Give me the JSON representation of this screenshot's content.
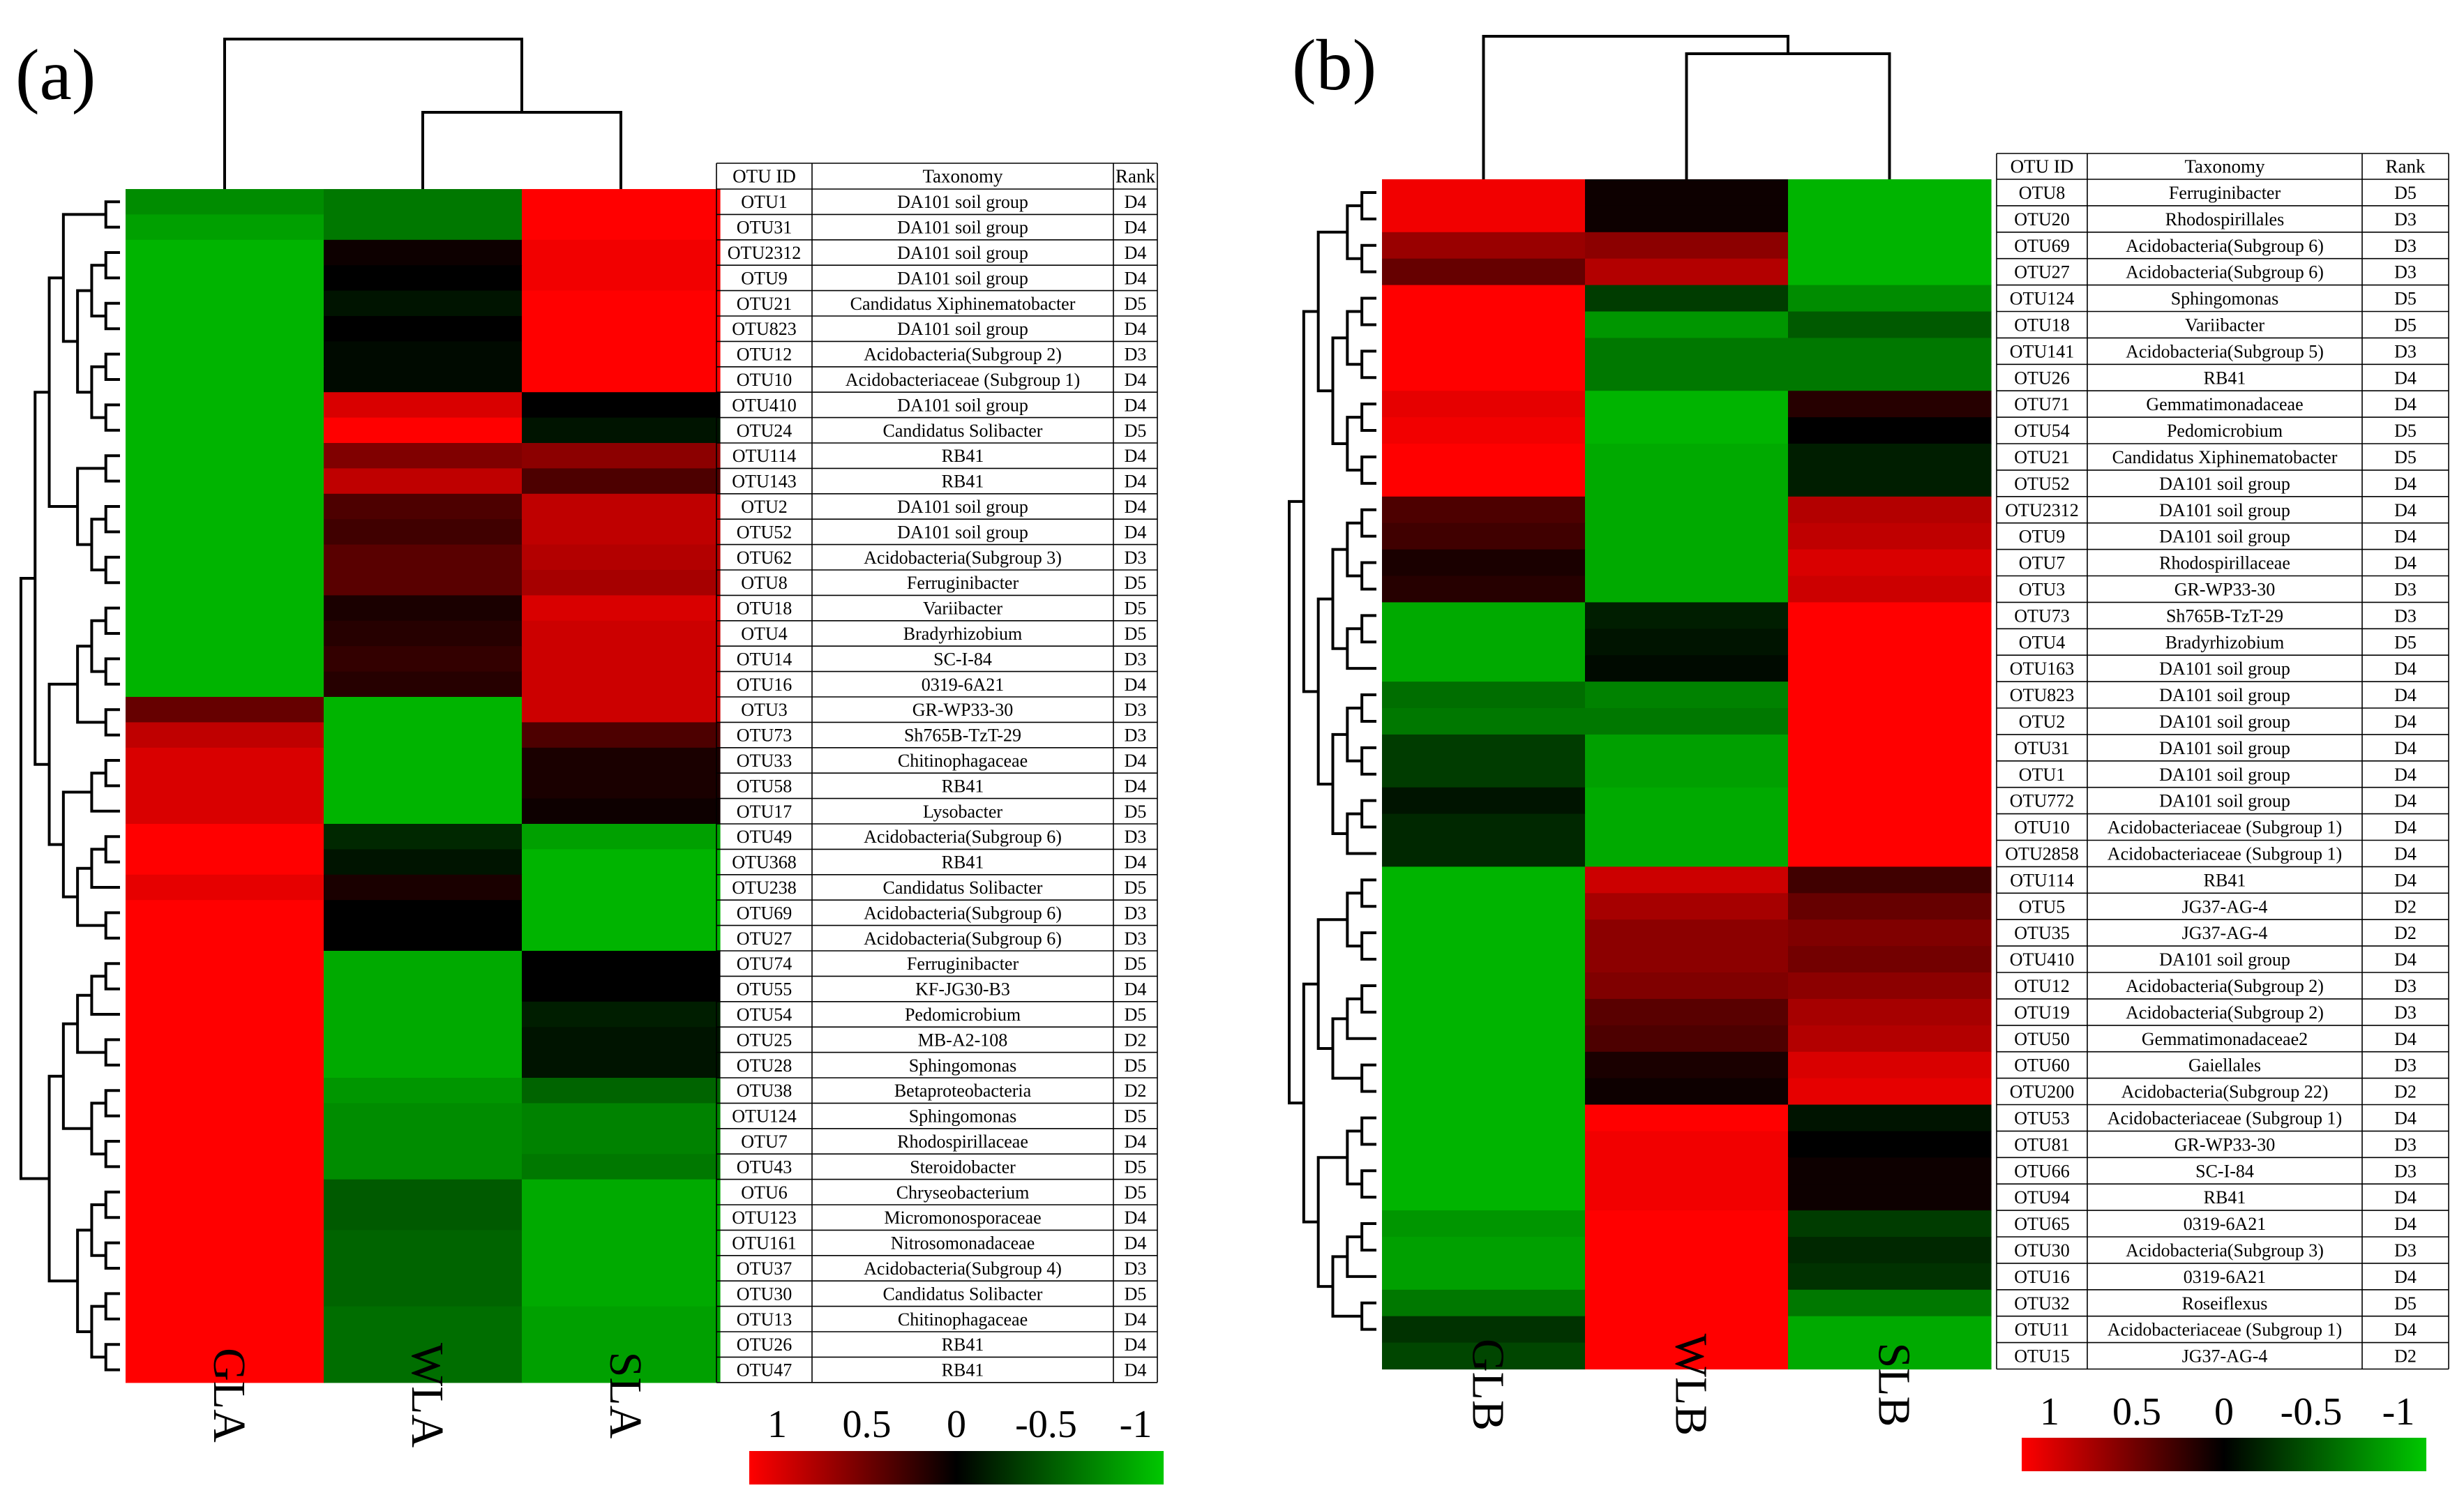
{
  "chart_data": [
    {
      "type": "heatmap",
      "panel_label": "(a)",
      "columns": [
        "GLA",
        "WLA",
        "SLA"
      ],
      "table_headers": [
        "OTU ID",
        "Taxonomy",
        "Rank"
      ],
      "colorbar": {
        "ticks": [
          "1",
          "0.5",
          "0",
          "-0.5",
          "-1"
        ],
        "range": [
          1,
          -1
        ],
        "colors": [
          "#ff0000",
          "#000000",
          "#00c800"
        ]
      },
      "rows": [
        {
          "id": "OTU1",
          "taxonomy": "DA101 soil group",
          "rank": "D4",
          "values": [
            -0.7,
            -0.6,
            1.0
          ]
        },
        {
          "id": "OTU31",
          "taxonomy": "DA101 soil group",
          "rank": "D4",
          "values": [
            -0.8,
            -0.6,
            1.0
          ]
        },
        {
          "id": "OTU2312",
          "taxonomy": "DA101 soil group",
          "rank": "D4",
          "values": [
            -0.9,
            0.05,
            0.95
          ]
        },
        {
          "id": "OTU9",
          "taxonomy": "DA101 soil group",
          "rank": "D4",
          "values": [
            -0.9,
            0.0,
            0.95
          ]
        },
        {
          "id": "OTU21",
          "taxonomy": "Candidatus Xiphinematobacter",
          "rank": "D5",
          "values": [
            -0.9,
            -0.1,
            1.0
          ]
        },
        {
          "id": "OTU823",
          "taxonomy": "DA101 soil group",
          "rank": "D4",
          "values": [
            -0.9,
            0.0,
            1.0
          ]
        },
        {
          "id": "OTU12",
          "taxonomy": "Acidobacteria(Subgroup 2)",
          "rank": "D3",
          "values": [
            -0.9,
            -0.05,
            1.0
          ]
        },
        {
          "id": "OTU10",
          "taxonomy": "Acidobacteriaceae (Subgroup 1)",
          "rank": "D4",
          "values": [
            -0.9,
            -0.05,
            1.0
          ]
        },
        {
          "id": "OTU410",
          "taxonomy": "DA101 soil group",
          "rank": "D4",
          "values": [
            -0.9,
            0.85,
            0.0
          ]
        },
        {
          "id": "OTU24",
          "taxonomy": "Candidatus Solibacter",
          "rank": "D5",
          "values": [
            -0.9,
            1.0,
            -0.1
          ]
        },
        {
          "id": "OTU114",
          "taxonomy": "RB41",
          "rank": "D4",
          "values": [
            -0.9,
            0.5,
            0.55
          ]
        },
        {
          "id": "OTU143",
          "taxonomy": "RB41",
          "rank": "D4",
          "values": [
            -0.9,
            0.75,
            0.3
          ]
        },
        {
          "id": "OTU2",
          "taxonomy": "DA101 soil group",
          "rank": "D4",
          "values": [
            -0.9,
            0.3,
            0.75
          ]
        },
        {
          "id": "OTU52",
          "taxonomy": "DA101 soil group",
          "rank": "D4",
          "values": [
            -0.9,
            0.25,
            0.75
          ]
        },
        {
          "id": "OTU62",
          "taxonomy": "Acidobacteria(Subgroup 3)",
          "rank": "D3",
          "values": [
            -0.9,
            0.35,
            0.7
          ]
        },
        {
          "id": "OTU8",
          "taxonomy": "Ferruginibacter",
          "rank": "D5",
          "values": [
            -0.9,
            0.35,
            0.65
          ]
        },
        {
          "id": "OTU18",
          "taxonomy": "Variibacter",
          "rank": "D5",
          "values": [
            -0.9,
            0.1,
            0.85
          ]
        },
        {
          "id": "OTU4",
          "taxonomy": "Bradyrhizobium",
          "rank": "D5",
          "values": [
            -0.9,
            0.15,
            0.8
          ]
        },
        {
          "id": "OTU14",
          "taxonomy": "SC-I-84",
          "rank": "D3",
          "values": [
            -0.9,
            0.2,
            0.8
          ]
        },
        {
          "id": "OTU16",
          "taxonomy": "0319-6A21",
          "rank": "D4",
          "values": [
            -0.9,
            0.15,
            0.8
          ]
        },
        {
          "id": "OTU3",
          "taxonomy": "GR-WP33-30",
          "rank": "D3",
          "values": [
            0.4,
            -0.9,
            0.8
          ]
        },
        {
          "id": "OTU73",
          "taxonomy": "Sh765B-TzT-29",
          "rank": "D3",
          "values": [
            0.75,
            -0.9,
            0.3
          ]
        },
        {
          "id": "OTU33",
          "taxonomy": "Chitinophagaceae",
          "rank": "D4",
          "values": [
            0.85,
            -0.9,
            0.1
          ]
        },
        {
          "id": "OTU58",
          "taxonomy": "RB41",
          "rank": "D4",
          "values": [
            0.85,
            -0.9,
            0.1
          ]
        },
        {
          "id": "OTU17",
          "taxonomy": "Lysobacter",
          "rank": "D5",
          "values": [
            0.85,
            -0.9,
            0.05
          ]
        },
        {
          "id": "OTU49",
          "taxonomy": "Acidobacteria(Subgroup 6)",
          "rank": "D3",
          "values": [
            1.0,
            -0.2,
            -0.8
          ]
        },
        {
          "id": "OTU368",
          "taxonomy": "RB41",
          "rank": "D4",
          "values": [
            1.0,
            -0.1,
            -0.9
          ]
        },
        {
          "id": "OTU238",
          "taxonomy": "Candidatus Solibacter",
          "rank": "D5",
          "values": [
            0.9,
            0.1,
            -0.9
          ]
        },
        {
          "id": "OTU69",
          "taxonomy": "Acidobacteria(Subgroup 6)",
          "rank": "D3",
          "values": [
            1.0,
            0.0,
            -0.9
          ]
        },
        {
          "id": "OTU27",
          "taxonomy": "Acidobacteria(Subgroup 6)",
          "rank": "D3",
          "values": [
            1.0,
            0.0,
            -0.9
          ]
        },
        {
          "id": "OTU74",
          "taxonomy": "Ferruginibacter",
          "rank": "D5",
          "values": [
            1.0,
            -0.85,
            0.0
          ]
        },
        {
          "id": "OTU55",
          "taxonomy": "KF-JG30-B3",
          "rank": "D4",
          "values": [
            1.0,
            -0.85,
            0.0
          ]
        },
        {
          "id": "OTU54",
          "taxonomy": "Pedomicrobium",
          "rank": "D5",
          "values": [
            1.0,
            -0.85,
            -0.15
          ]
        },
        {
          "id": "OTU25",
          "taxonomy": "MB-A2-108",
          "rank": "D2",
          "values": [
            1.0,
            -0.85,
            -0.1
          ]
        },
        {
          "id": "OTU28",
          "taxonomy": "Sphingomonas",
          "rank": "D5",
          "values": [
            1.0,
            -0.85,
            -0.1
          ]
        },
        {
          "id": "OTU38",
          "taxonomy": "Betaproteobacteria",
          "rank": "D2",
          "values": [
            1.0,
            -0.75,
            -0.5
          ]
        },
        {
          "id": "OTU124",
          "taxonomy": "Sphingomonas",
          "rank": "D5",
          "values": [
            1.0,
            -0.7,
            -0.65
          ]
        },
        {
          "id": "OTU7",
          "taxonomy": "Rhodospirillaceae",
          "rank": "D4",
          "values": [
            1.0,
            -0.7,
            -0.65
          ]
        },
        {
          "id": "OTU43",
          "taxonomy": "Steroidobacter",
          "rank": "D5",
          "values": [
            1.0,
            -0.7,
            -0.6
          ]
        },
        {
          "id": "OTU6",
          "taxonomy": "Chryseobacterium",
          "rank": "D5",
          "values": [
            1.0,
            -0.45,
            -0.85
          ]
        },
        {
          "id": "OTU123",
          "taxonomy": "Micromonosporaceae",
          "rank": "D4",
          "values": [
            1.0,
            -0.45,
            -0.85
          ]
        },
        {
          "id": "OTU161",
          "taxonomy": "Nitrosomonadaceae",
          "rank": "D4",
          "values": [
            1.0,
            -0.5,
            -0.85
          ]
        },
        {
          "id": "OTU37",
          "taxonomy": "Acidobacteria(Subgroup 4)",
          "rank": "D3",
          "values": [
            1.0,
            -0.5,
            -0.85
          ]
        },
        {
          "id": "OTU30",
          "taxonomy": "Candidatus Solibacter",
          "rank": "D5",
          "values": [
            1.0,
            -0.5,
            -0.85
          ]
        },
        {
          "id": "OTU13",
          "taxonomy": "Chitinophagaceae",
          "rank": "D4",
          "values": [
            1.0,
            -0.55,
            -0.8
          ]
        },
        {
          "id": "OTU26",
          "taxonomy": "RB41",
          "rank": "D4",
          "values": [
            1.0,
            -0.55,
            -0.8
          ]
        },
        {
          "id": "OTU47",
          "taxonomy": "RB41",
          "rank": "D4",
          "values": [
            1.0,
            -0.55,
            -0.8
          ]
        }
      ]
    },
    {
      "type": "heatmap",
      "panel_label": "(b)",
      "columns": [
        "GLB",
        "WLB",
        "SLB"
      ],
      "table_headers": [
        "OTU ID",
        "Taxonomy",
        "Rank"
      ],
      "colorbar": {
        "ticks": [
          "1",
          "0.5",
          "0",
          "-0.5",
          "-1"
        ],
        "range": [
          1,
          -1
        ],
        "colors": [
          "#ff0000",
          "#000000",
          "#00c800"
        ]
      },
      "rows": [
        {
          "id": "OTU8",
          "taxonomy": "Ferruginibacter",
          "rank": "D5",
          "values": [
            0.95,
            0.05,
            -0.9
          ]
        },
        {
          "id": "OTU20",
          "taxonomy": "Rhodospirillales",
          "rank": "D3",
          "values": [
            0.95,
            0.05,
            -0.9
          ]
        },
        {
          "id": "OTU69",
          "taxonomy": "Acidobacteria(Subgroup 6)",
          "rank": "D3",
          "values": [
            0.6,
            0.55,
            -0.9
          ]
        },
        {
          "id": "OTU27",
          "taxonomy": "Acidobacteria(Subgroup 6)",
          "rank": "D3",
          "values": [
            0.4,
            0.7,
            -0.9
          ]
        },
        {
          "id": "OTU124",
          "taxonomy": "Sphingomonas",
          "rank": "D5",
          "values": [
            1.0,
            -0.3,
            -0.7
          ]
        },
        {
          "id": "OTU18",
          "taxonomy": "Variibacter",
          "rank": "D5",
          "values": [
            1.0,
            -0.75,
            -0.45
          ]
        },
        {
          "id": "OTU141",
          "taxonomy": "Acidobacteria(Subgroup 5)",
          "rank": "D3",
          "values": [
            1.0,
            -0.6,
            -0.6
          ]
        },
        {
          "id": "OTU26",
          "taxonomy": "RB41",
          "rank": "D4",
          "values": [
            1.0,
            -0.6,
            -0.6
          ]
        },
        {
          "id": "OTU71",
          "taxonomy": "Gemmatimonadaceae",
          "rank": "D4",
          "values": [
            0.9,
            -0.9,
            0.15
          ]
        },
        {
          "id": "OTU54",
          "taxonomy": "Pedomicrobium",
          "rank": "D5",
          "values": [
            0.95,
            -0.9,
            0.0
          ]
        },
        {
          "id": "OTU21",
          "taxonomy": "Candidatus Xiphinematobacter",
          "rank": "D5",
          "values": [
            1.0,
            -0.85,
            -0.15
          ]
        },
        {
          "id": "OTU52",
          "taxonomy": "DA101 soil group",
          "rank": "D4",
          "values": [
            1.0,
            -0.85,
            -0.15
          ]
        },
        {
          "id": "OTU2312",
          "taxonomy": "DA101 soil group",
          "rank": "D4",
          "values": [
            0.3,
            -0.85,
            0.7
          ]
        },
        {
          "id": "OTU9",
          "taxonomy": "DA101 soil group",
          "rank": "D4",
          "values": [
            0.25,
            -0.85,
            0.75
          ]
        },
        {
          "id": "OTU7",
          "taxonomy": "Rhodospirillaceae",
          "rank": "D4",
          "values": [
            0.1,
            -0.85,
            0.85
          ]
        },
        {
          "id": "OTU3",
          "taxonomy": "GR-WP33-30",
          "rank": "D3",
          "values": [
            0.15,
            -0.85,
            0.8
          ]
        },
        {
          "id": "OTU73",
          "taxonomy": "Sh765B-TzT-29",
          "rank": "D3",
          "values": [
            -0.85,
            -0.15,
            1.0
          ]
        },
        {
          "id": "OTU4",
          "taxonomy": "Bradyrhizobium",
          "rank": "D5",
          "values": [
            -0.85,
            -0.1,
            1.0
          ]
        },
        {
          "id": "OTU163",
          "taxonomy": "DA101 soil group",
          "rank": "D4",
          "values": [
            -0.85,
            -0.05,
            1.0
          ]
        },
        {
          "id": "OTU823",
          "taxonomy": "DA101 soil group",
          "rank": "D4",
          "values": [
            -0.55,
            -0.65,
            1.0
          ]
        },
        {
          "id": "OTU2",
          "taxonomy": "DA101 soil group",
          "rank": "D4",
          "values": [
            -0.6,
            -0.6,
            1.0
          ]
        },
        {
          "id": "OTU31",
          "taxonomy": "DA101 soil group",
          "rank": "D4",
          "values": [
            -0.3,
            -0.8,
            1.0
          ]
        },
        {
          "id": "OTU1",
          "taxonomy": "DA101 soil group",
          "rank": "D4",
          "values": [
            -0.3,
            -0.8,
            1.0
          ]
        },
        {
          "id": "OTU772",
          "taxonomy": "DA101 soil group",
          "rank": "D4",
          "values": [
            -0.1,
            -0.85,
            1.0
          ]
        },
        {
          "id": "OTU10",
          "taxonomy": "Acidobacteriaceae (Subgroup 1)",
          "rank": "D4",
          "values": [
            -0.2,
            -0.85,
            1.0
          ]
        },
        {
          "id": "OTU2858",
          "taxonomy": "Acidobacteriaceae (Subgroup 1)",
          "rank": "D4",
          "values": [
            -0.2,
            -0.85,
            1.0
          ]
        },
        {
          "id": "OTU114",
          "taxonomy": "RB41",
          "rank": "D4",
          "values": [
            -0.9,
            0.8,
            0.25
          ]
        },
        {
          "id": "OTU5",
          "taxonomy": "JG37-AG-4",
          "rank": "D2",
          "values": [
            -0.9,
            0.65,
            0.4
          ]
        },
        {
          "id": "OTU35",
          "taxonomy": "JG37-AG-4",
          "rank": "D2",
          "values": [
            -0.9,
            0.55,
            0.5
          ]
        },
        {
          "id": "OTU410",
          "taxonomy": "DA101 soil group",
          "rank": "D4",
          "values": [
            -0.9,
            0.55,
            0.45
          ]
        },
        {
          "id": "OTU12",
          "taxonomy": "Acidobacteria(Subgroup 2)",
          "rank": "D3",
          "values": [
            -0.9,
            0.5,
            0.55
          ]
        },
        {
          "id": "OTU19",
          "taxonomy": "Acidobacteria(Subgroup 2)",
          "rank": "D3",
          "values": [
            -0.9,
            0.35,
            0.65
          ]
        },
        {
          "id": "OTU50",
          "taxonomy": "Gemmatimonadaceae2",
          "rank": "D4",
          "values": [
            -0.9,
            0.3,
            0.7
          ]
        },
        {
          "id": "OTU60",
          "taxonomy": "Gaiellales",
          "rank": "D3",
          "values": [
            -0.9,
            0.1,
            0.85
          ]
        },
        {
          "id": "OTU200",
          "taxonomy": "Acidobacteria(Subgroup 22)",
          "rank": "D2",
          "values": [
            -0.9,
            0.05,
            0.9
          ]
        },
        {
          "id": "OTU53",
          "taxonomy": "Acidobacteriaceae (Subgroup 1)",
          "rank": "D4",
          "values": [
            -0.9,
            1.0,
            -0.1
          ]
        },
        {
          "id": "OTU81",
          "taxonomy": "GR-WP33-30",
          "rank": "D3",
          "values": [
            -0.9,
            0.95,
            0.0
          ]
        },
        {
          "id": "OTU66",
          "taxonomy": "SC-I-84",
          "rank": "D3",
          "values": [
            -0.9,
            0.95,
            0.05
          ]
        },
        {
          "id": "OTU94",
          "taxonomy": "RB41",
          "rank": "D4",
          "values": [
            -0.9,
            0.95,
            0.05
          ]
        },
        {
          "id": "OTU65",
          "taxonomy": "0319-6A21",
          "rank": "D4",
          "values": [
            -0.75,
            1.0,
            -0.3
          ]
        },
        {
          "id": "OTU30",
          "taxonomy": "Acidobacteria(Subgroup 3)",
          "rank": "D3",
          "values": [
            -0.8,
            1.0,
            -0.2
          ]
        },
        {
          "id": "OTU16",
          "taxonomy": "0319-6A21",
          "rank": "D4",
          "values": [
            -0.8,
            1.0,
            -0.25
          ]
        },
        {
          "id": "OTU32",
          "taxonomy": "Roseiflexus",
          "rank": "D5",
          "values": [
            -0.6,
            1.0,
            -0.6
          ]
        },
        {
          "id": "OTU11",
          "taxonomy": "Acidobacteriaceae (Subgroup 1)",
          "rank": "D4",
          "values": [
            -0.25,
            1.0,
            -0.85
          ]
        },
        {
          "id": "OTU15",
          "taxonomy": "JG37-AG-4",
          "rank": "D2",
          "values": [
            -0.35,
            1.0,
            -0.85
          ]
        }
      ]
    }
  ]
}
